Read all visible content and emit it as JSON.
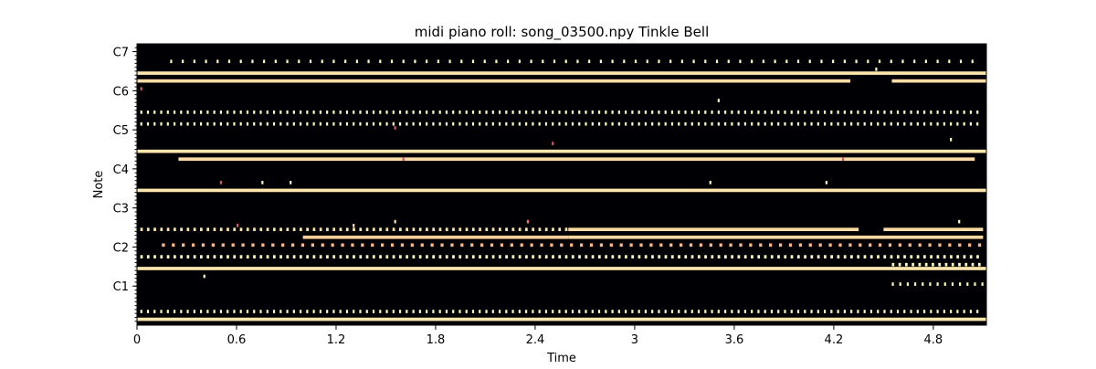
{
  "chart_data": {
    "type": "heatmap",
    "title": "midi piano roll: song_03500.npy Tinkle Bell",
    "xlabel": "Time",
    "ylabel": "Note",
    "xlim": [
      0,
      5.12
    ],
    "ylim": [
      0,
      72
    ],
    "x_ticks": [
      {
        "value": 0,
        "label": "0"
      },
      {
        "value": 0.6,
        "label": "0.6"
      },
      {
        "value": 1.2,
        "label": "1.2"
      },
      {
        "value": 1.8,
        "label": "1.8"
      },
      {
        "value": 2.4,
        "label": "2.4"
      },
      {
        "value": 3.0,
        "label": "3"
      },
      {
        "value": 3.6,
        "label": "3.6"
      },
      {
        "value": 4.2,
        "label": "4.2"
      },
      {
        "value": 4.8,
        "label": "4.8"
      }
    ],
    "y_ticks": [
      {
        "value": 10,
        "label": "C1"
      },
      {
        "value": 20,
        "label": "C2"
      },
      {
        "value": 30,
        "label": "C3"
      },
      {
        "value": 40,
        "label": "C4"
      },
      {
        "value": 50,
        "label": "C5"
      },
      {
        "value": 60,
        "label": "C6"
      },
      {
        "value": 70,
        "label": "C7"
      }
    ],
    "colormap": "magma",
    "background_color": "#000004",
    "sustained_notes": [
      {
        "note": 1,
        "start": 0.0,
        "end": 5.12,
        "level": 0.95
      },
      {
        "note": 14,
        "start": 0.0,
        "end": 5.12,
        "level": 0.95
      },
      {
        "note": 22,
        "start": 1.0,
        "end": 2.6,
        "level": 0.9
      },
      {
        "note": 22,
        "start": 2.6,
        "end": 5.1,
        "level": 0.92
      },
      {
        "note": 24,
        "start": 2.6,
        "end": 4.35,
        "level": 0.93
      },
      {
        "note": 24,
        "start": 4.5,
        "end": 5.1,
        "level": 0.93
      },
      {
        "note": 34,
        "start": 0.0,
        "end": 5.12,
        "level": 0.95
      },
      {
        "note": 42,
        "start": 0.25,
        "end": 5.05,
        "level": 0.93
      },
      {
        "note": 44,
        "start": 0.0,
        "end": 5.12,
        "level": 0.95
      },
      {
        "note": 62,
        "start": 0.0,
        "end": 4.3,
        "level": 0.93
      },
      {
        "note": 62,
        "start": 4.55,
        "end": 5.12,
        "level": 0.93
      },
      {
        "note": 64,
        "start": 0.0,
        "end": 5.12,
        "level": 0.95
      }
    ],
    "repeated_notes": [
      {
        "note": 3,
        "start": 0.02,
        "end": 5.1,
        "step": 0.04,
        "dur": 0.012,
        "level": 1.0
      },
      {
        "note": 10,
        "start": 4.55,
        "end": 5.1,
        "step": 0.045,
        "dur": 0.012,
        "level": 1.0
      },
      {
        "note": 15,
        "start": 4.55,
        "end": 5.1,
        "step": 0.04,
        "dur": 0.015,
        "level": 1.0
      },
      {
        "note": 17,
        "start": 0.02,
        "end": 5.1,
        "step": 0.04,
        "dur": 0.015,
        "level": 1.0
      },
      {
        "note": 20,
        "start": 0.15,
        "end": 5.1,
        "step": 0.06,
        "dur": 0.018,
        "level": 0.85
      },
      {
        "note": 24,
        "start": 0.02,
        "end": 2.6,
        "step": 0.04,
        "dur": 0.015,
        "level": 0.95
      },
      {
        "note": 51,
        "start": 0.02,
        "end": 5.1,
        "step": 0.04,
        "dur": 0.012,
        "level": 1.0
      },
      {
        "note": 54,
        "start": 0.02,
        "end": 5.1,
        "step": 0.04,
        "dur": 0.012,
        "level": 1.0
      },
      {
        "note": 67,
        "start": 0.2,
        "end": 5.1,
        "step": 0.07,
        "dur": 0.012,
        "level": 1.0
      }
    ],
    "isolated_notes": [
      {
        "note": 25,
        "time": 0.6,
        "level": 0.6
      },
      {
        "note": 25,
        "time": 1.3,
        "level": 0.95
      },
      {
        "note": 26,
        "time": 1.55,
        "level": 0.95
      },
      {
        "note": 26,
        "time": 2.35,
        "level": 0.7
      },
      {
        "note": 26,
        "time": 4.95,
        "level": 1.0
      },
      {
        "note": 36,
        "time": 0.5,
        "level": 0.6
      },
      {
        "note": 36,
        "time": 0.75,
        "level": 1.0
      },
      {
        "note": 36,
        "time": 0.92,
        "level": 1.0
      },
      {
        "note": 36,
        "time": 3.45,
        "level": 1.0
      },
      {
        "note": 36,
        "time": 4.15,
        "level": 1.0
      },
      {
        "note": 42,
        "time": 1.6,
        "level": 0.6
      },
      {
        "note": 42,
        "time": 4.25,
        "level": 0.6
      },
      {
        "note": 46,
        "time": 2.5,
        "level": 0.6
      },
      {
        "note": 47,
        "time": 4.9,
        "level": 1.0
      },
      {
        "note": 50,
        "time": 1.55,
        "level": 0.6
      },
      {
        "note": 57,
        "time": 3.5,
        "level": 1.0
      },
      {
        "note": 65,
        "time": 4.45,
        "level": 1.0
      },
      {
        "note": 60,
        "time": 0.02,
        "level": 0.6
      },
      {
        "note": 12,
        "time": 0.4,
        "level": 1.0
      }
    ]
  }
}
